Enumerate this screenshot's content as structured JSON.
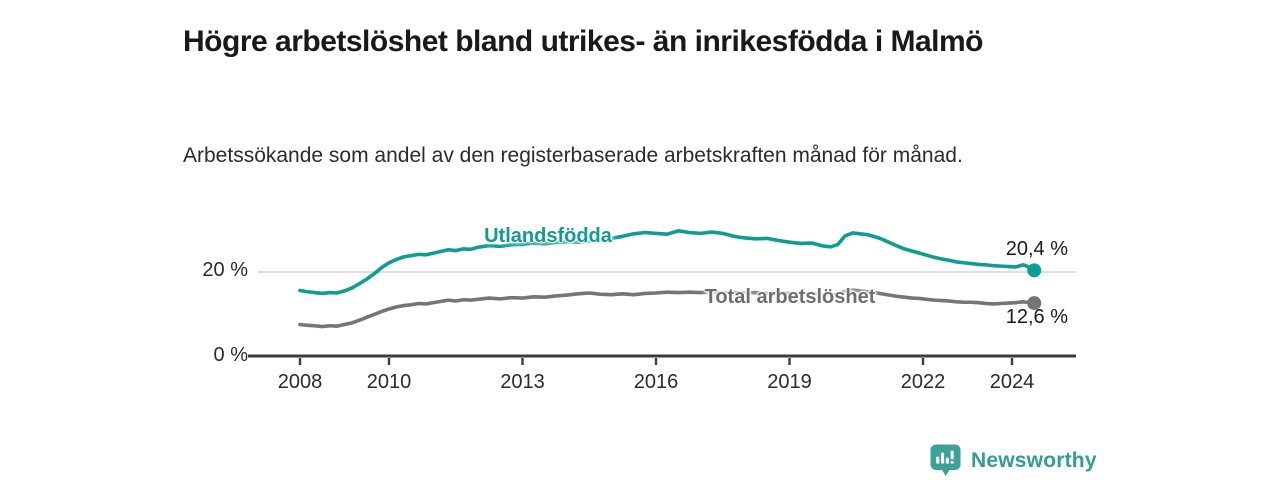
{
  "chart_data": {
    "type": "line",
    "title": "Högre arbetslöshet bland utrikes- än inrikesfödda i Malmö",
    "subtitle": "Arbetssökande som andel av den registerbaserade arbetskraften månad för månad.",
    "unit": "%",
    "xlabel": "",
    "ylabel": "",
    "ylim": [
      0,
      32
    ],
    "x_range_years": [
      2007,
      2025.5
    ],
    "grid": "single light horizontal gridline at 20 %",
    "legend_position": "inline labels next to lines",
    "axis_color": "#3b3b3b",
    "gridline_color": "#dedede",
    "yticks": [
      {
        "value": 20,
        "label": "20 %"
      },
      {
        "value": 0,
        "label": "0 %"
      }
    ],
    "xticks": [
      {
        "year": 2008,
        "label": "2008"
      },
      {
        "year": 2010,
        "label": "2010"
      },
      {
        "year": 2013,
        "label": "2013"
      },
      {
        "year": 2016,
        "label": "2016"
      },
      {
        "year": 2019,
        "label": "2019"
      },
      {
        "year": 2022,
        "label": "2022"
      },
      {
        "year": 2024,
        "label": "2024"
      }
    ],
    "series": [
      {
        "name": "Utlandsfödda",
        "color": "#0f9d92",
        "end_value": 20.4,
        "end_label": "20,4 %",
        "points": [
          [
            2008.0,
            15.6
          ],
          [
            2008.17,
            15.3
          ],
          [
            2008.33,
            15.1
          ],
          [
            2008.5,
            14.9
          ],
          [
            2008.67,
            15.1
          ],
          [
            2008.83,
            15.0
          ],
          [
            2009.0,
            15.5
          ],
          [
            2009.17,
            16.2
          ],
          [
            2009.33,
            17.2
          ],
          [
            2009.5,
            18.3
          ],
          [
            2009.67,
            19.6
          ],
          [
            2009.83,
            21.0
          ],
          [
            2010.0,
            22.2
          ],
          [
            2010.17,
            23.0
          ],
          [
            2010.33,
            23.6
          ],
          [
            2010.5,
            23.9
          ],
          [
            2010.67,
            24.2
          ],
          [
            2010.83,
            24.1
          ],
          [
            2011.0,
            24.5
          ],
          [
            2011.17,
            24.9
          ],
          [
            2011.33,
            25.3
          ],
          [
            2011.5,
            25.1
          ],
          [
            2011.67,
            25.5
          ],
          [
            2011.83,
            25.4
          ],
          [
            2012.0,
            25.9
          ],
          [
            2012.25,
            26.3
          ],
          [
            2012.5,
            26.1
          ],
          [
            2012.75,
            26.5
          ],
          [
            2013.0,
            26.6
          ],
          [
            2013.25,
            26.9
          ],
          [
            2013.5,
            26.7
          ],
          [
            2013.75,
            27.0
          ],
          [
            2014.0,
            27.2
          ],
          [
            2014.25,
            27.1
          ],
          [
            2014.5,
            27.4
          ],
          [
            2014.75,
            27.7
          ],
          [
            2015.0,
            28.0
          ],
          [
            2015.25,
            28.5
          ],
          [
            2015.5,
            29.1
          ],
          [
            2015.75,
            29.4
          ],
          [
            2016.0,
            29.2
          ],
          [
            2016.25,
            29.0
          ],
          [
            2016.5,
            29.8
          ],
          [
            2016.75,
            29.4
          ],
          [
            2017.0,
            29.2
          ],
          [
            2017.25,
            29.5
          ],
          [
            2017.5,
            29.2
          ],
          [
            2017.75,
            28.5
          ],
          [
            2018.0,
            28.1
          ],
          [
            2018.25,
            27.9
          ],
          [
            2018.5,
            28.0
          ],
          [
            2018.75,
            27.5
          ],
          [
            2019.0,
            27.1
          ],
          [
            2019.25,
            26.8
          ],
          [
            2019.5,
            26.9
          ],
          [
            2019.75,
            26.2
          ],
          [
            2019.92,
            26.0
          ],
          [
            2020.08,
            26.5
          ],
          [
            2020.25,
            28.6
          ],
          [
            2020.42,
            29.3
          ],
          [
            2020.58,
            29.1
          ],
          [
            2020.75,
            28.9
          ],
          [
            2020.92,
            28.4
          ],
          [
            2021.08,
            27.8
          ],
          [
            2021.25,
            27.0
          ],
          [
            2021.42,
            26.2
          ],
          [
            2021.58,
            25.5
          ],
          [
            2021.75,
            25.0
          ],
          [
            2021.92,
            24.5
          ],
          [
            2022.08,
            24.0
          ],
          [
            2022.25,
            23.5
          ],
          [
            2022.42,
            23.1
          ],
          [
            2022.58,
            22.8
          ],
          [
            2022.75,
            22.4
          ],
          [
            2022.92,
            22.2
          ],
          [
            2023.08,
            22.0
          ],
          [
            2023.25,
            21.8
          ],
          [
            2023.42,
            21.7
          ],
          [
            2023.58,
            21.5
          ],
          [
            2023.75,
            21.4
          ],
          [
            2023.92,
            21.3
          ],
          [
            2024.08,
            21.2
          ],
          [
            2024.25,
            21.7
          ],
          [
            2024.33,
            21.4
          ],
          [
            2024.42,
            20.9
          ],
          [
            2024.5,
            20.4
          ]
        ]
      },
      {
        "name": "Total arbetslöshet",
        "color": "#757575",
        "end_value": 12.6,
        "end_label": "12,6 %",
        "points": [
          [
            2008.0,
            7.5
          ],
          [
            2008.17,
            7.3
          ],
          [
            2008.33,
            7.2
          ],
          [
            2008.5,
            7.0
          ],
          [
            2008.67,
            7.2
          ],
          [
            2008.83,
            7.1
          ],
          [
            2009.0,
            7.5
          ],
          [
            2009.17,
            7.9
          ],
          [
            2009.33,
            8.5
          ],
          [
            2009.5,
            9.2
          ],
          [
            2009.67,
            9.9
          ],
          [
            2009.83,
            10.6
          ],
          [
            2010.0,
            11.2
          ],
          [
            2010.17,
            11.7
          ],
          [
            2010.33,
            12.0
          ],
          [
            2010.5,
            12.2
          ],
          [
            2010.67,
            12.5
          ],
          [
            2010.83,
            12.4
          ],
          [
            2011.0,
            12.7
          ],
          [
            2011.17,
            13.0
          ],
          [
            2011.33,
            13.3
          ],
          [
            2011.5,
            13.1
          ],
          [
            2011.67,
            13.4
          ],
          [
            2011.83,
            13.3
          ],
          [
            2012.0,
            13.5
          ],
          [
            2012.25,
            13.8
          ],
          [
            2012.5,
            13.6
          ],
          [
            2012.75,
            13.9
          ],
          [
            2013.0,
            13.8
          ],
          [
            2013.25,
            14.1
          ],
          [
            2013.5,
            14.0
          ],
          [
            2013.75,
            14.3
          ],
          [
            2014.0,
            14.5
          ],
          [
            2014.25,
            14.8
          ],
          [
            2014.5,
            15.0
          ],
          [
            2014.75,
            14.7
          ],
          [
            2015.0,
            14.6
          ],
          [
            2015.25,
            14.8
          ],
          [
            2015.5,
            14.6
          ],
          [
            2015.75,
            14.9
          ],
          [
            2016.0,
            15.0
          ],
          [
            2016.25,
            15.2
          ],
          [
            2016.5,
            15.1
          ],
          [
            2016.75,
            15.2
          ],
          [
            2017.0,
            15.1
          ],
          [
            2017.25,
            15.2
          ],
          [
            2017.5,
            15.0
          ],
          [
            2017.75,
            15.1
          ],
          [
            2018.0,
            15.0
          ],
          [
            2018.25,
            15.1
          ],
          [
            2018.5,
            14.9
          ],
          [
            2018.75,
            15.0
          ],
          [
            2019.0,
            14.9
          ],
          [
            2019.25,
            14.8
          ],
          [
            2019.5,
            14.9
          ],
          [
            2019.75,
            14.6
          ],
          [
            2019.92,
            14.5
          ],
          [
            2020.08,
            14.8
          ],
          [
            2020.25,
            15.4
          ],
          [
            2020.42,
            15.7
          ],
          [
            2020.58,
            15.5
          ],
          [
            2020.75,
            15.3
          ],
          [
            2020.92,
            15.1
          ],
          [
            2021.08,
            14.8
          ],
          [
            2021.25,
            14.5
          ],
          [
            2021.42,
            14.2
          ],
          [
            2021.58,
            14.0
          ],
          [
            2021.75,
            13.8
          ],
          [
            2021.92,
            13.7
          ],
          [
            2022.08,
            13.5
          ],
          [
            2022.25,
            13.3
          ],
          [
            2022.42,
            13.2
          ],
          [
            2022.58,
            13.1
          ],
          [
            2022.75,
            12.9
          ],
          [
            2022.92,
            12.8
          ],
          [
            2023.08,
            12.8
          ],
          [
            2023.25,
            12.7
          ],
          [
            2023.42,
            12.5
          ],
          [
            2023.58,
            12.4
          ],
          [
            2023.75,
            12.5
          ],
          [
            2023.92,
            12.6
          ],
          [
            2024.08,
            12.7
          ],
          [
            2024.25,
            12.9
          ],
          [
            2024.33,
            12.8
          ],
          [
            2024.42,
            12.7
          ],
          [
            2024.5,
            12.6
          ]
        ]
      }
    ]
  },
  "footer": {
    "brand": "Newsworthy",
    "brand_color": "#2f9e93",
    "icon": "bar-chart-speech-bubble-icon",
    "icon_color": "#3da295"
  }
}
